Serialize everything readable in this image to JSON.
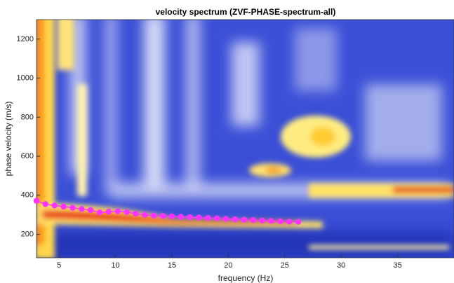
{
  "chart_data": {
    "type": "scatter",
    "title": "velocity spectrum (ZVF-PHASE-spectrum-all)",
    "x_label": "frequency (Hz)",
    "y_label": "phase velocity (m/s)",
    "x": [
      3.0,
      3.8,
      4.6,
      5.4,
      6.2,
      7.0,
      7.8,
      8.6,
      9.4,
      10.2,
      11.0,
      11.8,
      12.6,
      13.4,
      14.2,
      15.0,
      15.8,
      16.6,
      17.4,
      18.2,
      19.0,
      19.8,
      20.6,
      21.4,
      22.2,
      23.0,
      23.8,
      24.6,
      25.4,
      26.2
    ],
    "values": [
      372,
      355,
      348,
      342,
      336,
      330,
      324,
      312,
      316,
      318,
      314,
      306,
      300,
      296,
      294,
      292,
      290,
      288,
      286,
      284,
      282,
      279,
      277,
      275,
      273,
      271,
      269,
      267,
      265,
      264
    ],
    "color": "#ff33ff",
    "xlim": [
      3,
      40
    ],
    "xticks": [
      5,
      10,
      15,
      20,
      25,
      30,
      35
    ],
    "ylim": [
      80,
      1300
    ],
    "yticks": [
      200,
      400,
      600,
      800,
      1000,
      1200
    ]
  }
}
